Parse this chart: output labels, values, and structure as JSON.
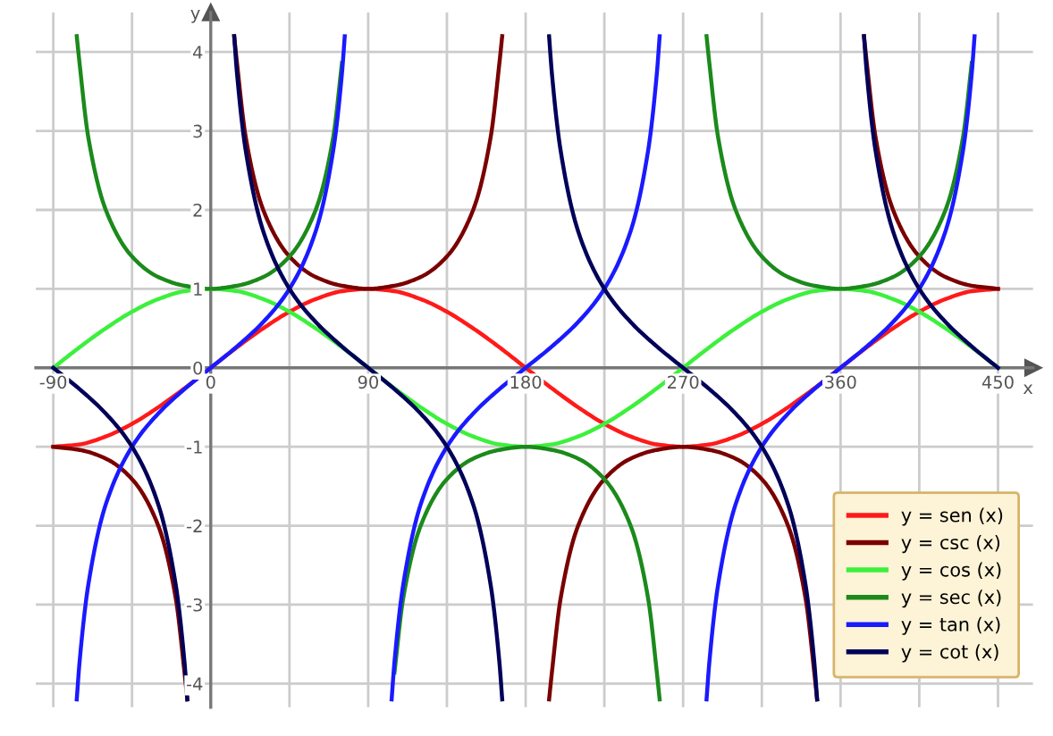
{
  "chart_data": {
    "type": "line",
    "xlabel": "x",
    "ylabel": "y",
    "xlim": [
      -100,
      470
    ],
    "ylim": [
      -4.3,
      4.5
    ],
    "xticks": [
      -90,
      {
        "value": -45,
        "label": null
      },
      {
        "value": 0,
        "label": "0"
      },
      {
        "value": 45,
        "label": null
      },
      90,
      {
        "value": 135,
        "label": null
      },
      180,
      {
        "value": 225,
        "label": null
      },
      270,
      {
        "value": 315,
        "label": null
      },
      360,
      {
        "value": 405,
        "label": null
      },
      450
    ],
    "yticks": [
      -4,
      -3,
      -2,
      -1,
      0,
      1,
      2,
      3,
      4
    ],
    "grid": true,
    "legend": "lower right",
    "marker": "none",
    "line_style": "solid",
    "series": [
      {
        "name": "y = sen (x)",
        "color": "#ff1a1a",
        "x": [
          -90,
          -75,
          -60,
          -45,
          -30,
          -15,
          0,
          15,
          30,
          45,
          60,
          75,
          90,
          105,
          120,
          135,
          150,
          165,
          180,
          195,
          210,
          225,
          240,
          255,
          270,
          285,
          300,
          315,
          330,
          345,
          360,
          375,
          390,
          405,
          420,
          435,
          450
        ],
        "values": [
          -1,
          -0.97,
          -0.87,
          -0.71,
          -0.5,
          -0.26,
          0,
          0.26,
          0.5,
          0.71,
          0.87,
          0.97,
          1,
          0.97,
          0.87,
          0.71,
          0.5,
          0.26,
          0,
          -0.26,
          -0.5,
          -0.71,
          -0.87,
          -0.97,
          -1,
          -0.97,
          -0.87,
          -0.71,
          -0.5,
          -0.26,
          0,
          0.26,
          0.5,
          0.71,
          0.87,
          0.97,
          1
        ]
      },
      {
        "name": "y = csc (x)",
        "color": "#7a0000",
        "x": [
          -90,
          -75,
          -60,
          -45,
          -30,
          -20,
          -15,
          -13.4,
          0,
          13.4,
          15,
          20,
          30,
          45,
          60,
          75,
          90,
          105,
          120,
          135,
          150,
          160,
          165,
          166.6,
          180,
          193.4,
          195,
          200,
          210,
          225,
          240,
          255,
          270,
          285,
          300,
          315,
          330,
          340,
          345,
          346.6,
          360,
          373.4,
          375,
          380,
          390,
          405,
          420,
          435,
          450
        ],
        "values": [
          -1,
          -1.04,
          -1.15,
          -1.41,
          -2,
          -2.92,
          -3.86,
          -4.2,
          null,
          4.2,
          3.86,
          2.92,
          2,
          1.41,
          1.15,
          1.04,
          1,
          1.04,
          1.15,
          1.41,
          2,
          2.92,
          3.86,
          4.2,
          null,
          -4.2,
          -3.86,
          -2.92,
          -2,
          -1.41,
          -1.15,
          -1.04,
          -1,
          -1.04,
          -1.15,
          -1.41,
          -2,
          -2.92,
          -3.86,
          -4.2,
          null,
          4.2,
          3.86,
          2.92,
          2,
          1.41,
          1.15,
          1.04,
          1
        ]
      },
      {
        "name": "y = cos (x)",
        "color": "#3cf03c",
        "x": [
          -90,
          -75,
          -60,
          -45,
          -30,
          -15,
          0,
          15,
          30,
          45,
          60,
          75,
          90,
          105,
          120,
          135,
          150,
          165,
          180,
          195,
          210,
          225,
          240,
          255,
          270,
          285,
          300,
          315,
          330,
          345,
          360,
          375,
          390,
          405,
          420,
          435,
          450
        ],
        "values": [
          0,
          0.26,
          0.5,
          0.71,
          0.87,
          0.97,
          1,
          0.97,
          0.87,
          0.71,
          0.5,
          0.26,
          0,
          -0.26,
          -0.5,
          -0.71,
          -0.87,
          -0.97,
          -1,
          -0.97,
          -0.87,
          -0.71,
          -0.5,
          -0.26,
          0,
          0.26,
          0.5,
          0.71,
          0.87,
          0.97,
          1,
          0.97,
          0.87,
          0.71,
          0.5,
          0.26,
          0
        ]
      },
      {
        "name": "y = sec (x)",
        "color": "#1b8a1b",
        "x": [
          -76.6,
          -75,
          -70,
          -60,
          -45,
          -30,
          -15,
          0,
          15,
          30,
          45,
          60,
          70,
          75,
          76.6,
          90,
          103.4,
          105,
          110,
          120,
          135,
          150,
          165,
          180,
          195,
          210,
          225,
          240,
          250,
          255,
          256.6,
          270,
          283.4,
          285,
          290,
          300,
          315,
          330,
          345,
          360,
          375,
          390,
          405,
          420,
          430,
          435
        ],
        "values": [
          4.2,
          3.86,
          2.92,
          2,
          1.41,
          1.15,
          1.04,
          1,
          1.04,
          1.15,
          1.41,
          2,
          2.92,
          3.86,
          null,
          null,
          null,
          -3.86,
          -2.92,
          -2,
          -1.41,
          -1.15,
          -1.04,
          -1,
          -1.04,
          -1.15,
          -1.41,
          -2,
          -2.92,
          -3.86,
          -4.2,
          null,
          4.2,
          3.86,
          2.92,
          2,
          1.41,
          1.15,
          1.04,
          1,
          1.04,
          1.15,
          1.41,
          2,
          2.92,
          3.86
        ]
      },
      {
        "name": "y = tan (x)",
        "color": "#1a1aff",
        "x": [
          -76.6,
          -75,
          -70,
          -60,
          -45,
          -30,
          -15,
          0,
          15,
          30,
          45,
          60,
          70,
          75,
          76.6,
          90,
          103.4,
          105,
          110,
          120,
          135,
          150,
          165,
          180,
          195,
          210,
          225,
          240,
          250,
          255,
          256.6,
          270,
          283.4,
          285,
          290,
          300,
          315,
          330,
          345,
          360,
          375,
          390,
          405,
          420,
          430,
          435,
          436.6
        ],
        "values": [
          -4.2,
          -3.73,
          -2.75,
          -1.73,
          -1,
          -0.58,
          -0.27,
          0,
          0.27,
          0.58,
          1,
          1.73,
          2.75,
          3.73,
          4.2,
          null,
          -4.2,
          -3.73,
          -2.75,
          -1.73,
          -1,
          -0.58,
          -0.27,
          0,
          0.27,
          0.58,
          1,
          1.73,
          2.75,
          3.73,
          4.2,
          null,
          -4.2,
          -3.73,
          -2.75,
          -1.73,
          -1,
          -0.58,
          -0.27,
          0,
          0.27,
          0.58,
          1,
          1.73,
          2.75,
          3.73,
          4.2
        ]
      },
      {
        "name": "y = cot (x)",
        "color": "#00005a",
        "x": [
          -90,
          -75,
          -60,
          -45,
          -30,
          -20,
          -15,
          -13.4,
          0,
          13.4,
          15,
          20,
          30,
          45,
          60,
          75,
          90,
          105,
          120,
          135,
          150,
          160,
          165,
          166.6,
          180,
          193.4,
          195,
          200,
          210,
          225,
          240,
          255,
          270,
          285,
          300,
          315,
          330,
          340,
          345,
          346.6,
          360,
          373.4,
          375,
          380,
          390,
          405,
          420,
          435,
          450
        ],
        "values": [
          0,
          -0.27,
          -0.58,
          -1,
          -1.73,
          -2.75,
          -3.73,
          -4.2,
          null,
          4.2,
          3.73,
          2.75,
          1.73,
          1,
          0.58,
          0.27,
          0,
          -0.27,
          -0.58,
          -1,
          -1.73,
          -2.75,
          -3.73,
          -4.2,
          null,
          4.2,
          3.73,
          2.75,
          1.73,
          1,
          0.58,
          0.27,
          0,
          -0.27,
          -0.58,
          -1,
          -1.73,
          -2.75,
          -3.73,
          -4.2,
          null,
          4.2,
          3.73,
          2.75,
          1.73,
          1,
          0.58,
          0.27,
          0
        ]
      }
    ]
  }
}
